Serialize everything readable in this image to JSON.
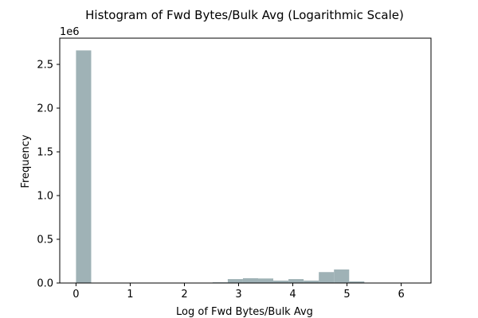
{
  "chart_data": {
    "type": "bar",
    "title": "Histogram of Fwd Bytes/Bulk Avg (Logarithmic Scale)",
    "xlabel": "Log of Fwd Bytes/Bulk Avg",
    "ylabel": "Frequency",
    "y_offset_text": "1e6",
    "y_multiplier": 1000000,
    "xlim": [
      -0.3,
      6.55
    ],
    "ylim": [
      0,
      2800000
    ],
    "x_ticks": [
      0,
      1,
      2,
      3,
      4,
      5,
      6
    ],
    "x_tick_labels": [
      "0",
      "1",
      "2",
      "3",
      "4",
      "5",
      "6"
    ],
    "y_ticks": [
      0,
      500000,
      1000000,
      1500000,
      2000000,
      2500000
    ],
    "y_tick_labels": [
      "0.0",
      "0.5",
      "1.0",
      "1.5",
      "2.0",
      "2.5"
    ],
    "bar_color": "#9fb2b6",
    "bins": [
      {
        "x0": 0.0,
        "x1": 0.28,
        "value": 2660000
      },
      {
        "x0": 2.52,
        "x1": 2.8,
        "value": 8000
      },
      {
        "x0": 2.8,
        "x1": 3.08,
        "value": 45000
      },
      {
        "x0": 3.08,
        "x1": 3.36,
        "value": 55000
      },
      {
        "x0": 3.36,
        "x1": 3.64,
        "value": 52000
      },
      {
        "x0": 3.64,
        "x1": 3.92,
        "value": 28000
      },
      {
        "x0": 3.92,
        "x1": 4.2,
        "value": 45000
      },
      {
        "x0": 4.2,
        "x1": 4.48,
        "value": 28000
      },
      {
        "x0": 4.48,
        "x1": 4.76,
        "value": 125000
      },
      {
        "x0": 4.76,
        "x1": 5.04,
        "value": 155000
      },
      {
        "x0": 5.04,
        "x1": 5.32,
        "value": 18000
      },
      {
        "x0": 5.32,
        "x1": 5.6,
        "value": 3000
      },
      {
        "x0": 5.6,
        "x1": 5.88,
        "value": 1000
      },
      {
        "x0": 5.88,
        "x1": 6.16,
        "value": 500
      }
    ]
  }
}
